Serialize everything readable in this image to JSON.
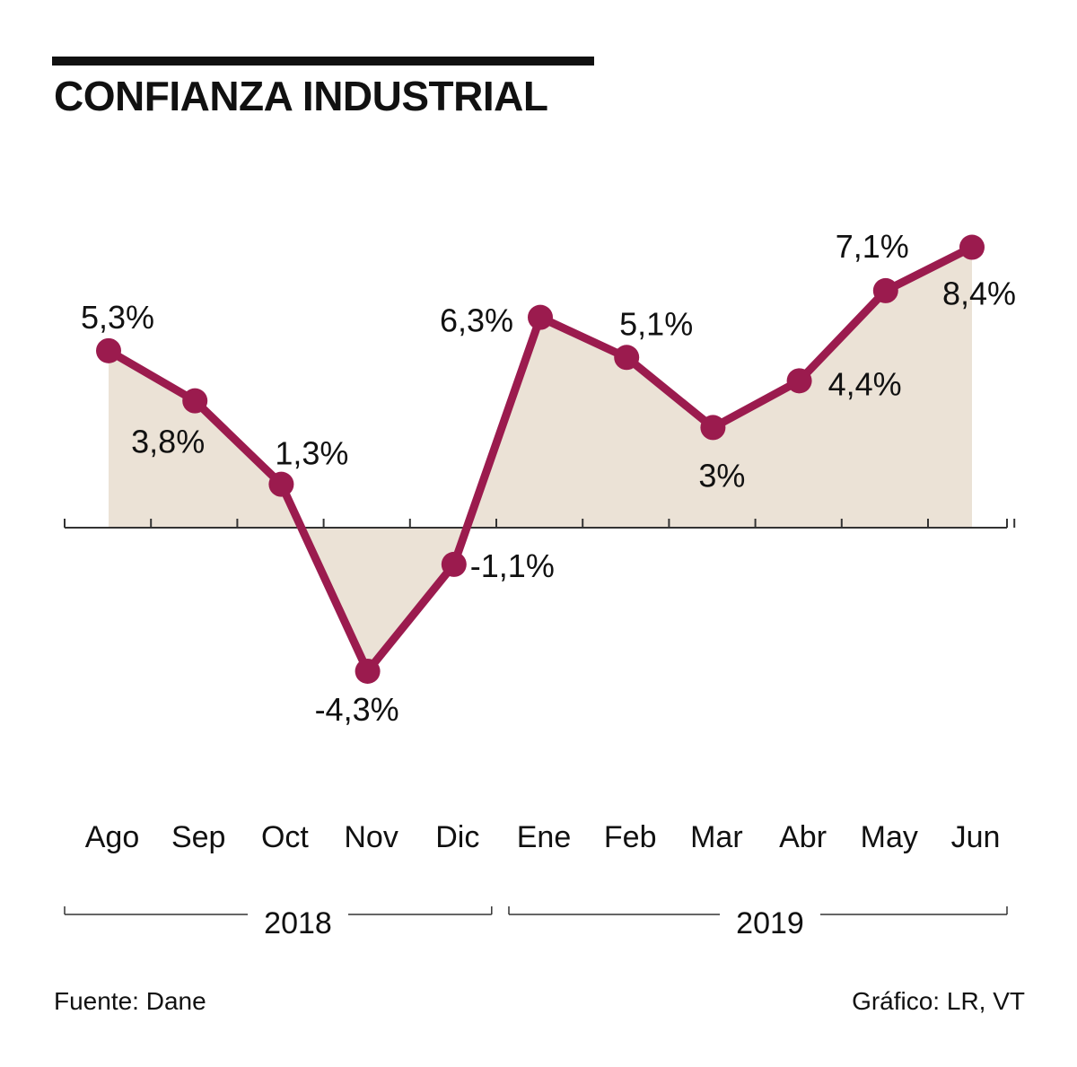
{
  "title": "CONFIANZA INDUSTRIAL",
  "source": "Fuente: Dane",
  "credit": "Gráfico: LR, VT",
  "colors": {
    "line": "#9b1b4e",
    "area": "#ebe2d6",
    "axis": "#333333",
    "text": "#111111"
  },
  "chart_data": {
    "type": "line",
    "title": "CONFIANZA INDUSTRIAL",
    "categories": [
      "Ago",
      "Sep",
      "Oct",
      "Nov",
      "Dic",
      "Ene",
      "Feb",
      "Mar",
      "Abr",
      "May",
      "Jun"
    ],
    "values": [
      5.3,
      3.8,
      1.3,
      -4.3,
      -1.1,
      6.3,
      5.1,
      3,
      4.4,
      7.1,
      8.4
    ],
    "data_labels": [
      "5,3%",
      "3,8%",
      "1,3%",
      "-4,3%",
      "-1,1%",
      "6,3%",
      "5,1%",
      "3%",
      "4,4%",
      "7,1%",
      "8,4%"
    ],
    "year_groups": [
      {
        "label": "2018",
        "from": 0,
        "to": 4
      },
      {
        "label": "2019",
        "from": 5,
        "to": 10
      }
    ],
    "ylim": [
      -6,
      10
    ],
    "xlabel": "",
    "ylabel": "",
    "grid": false,
    "area_fill": true
  }
}
